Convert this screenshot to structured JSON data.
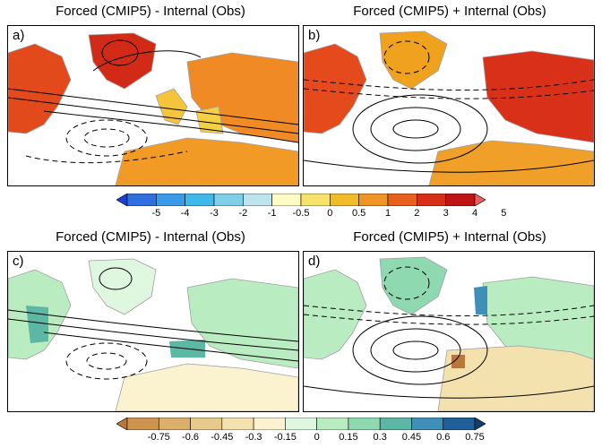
{
  "panels": [
    {
      "id": "a",
      "label": "a)",
      "title": "Forced (CMIP5) - Internal (Obs)"
    },
    {
      "id": "b",
      "label": "b)",
      "title": "Forced (CMIP5) + Internal (Obs)"
    },
    {
      "id": "c",
      "label": "c)",
      "title": "Forced (CMIP5) - Internal (Obs)"
    },
    {
      "id": "d",
      "label": "d)",
      "title": "Forced (CMIP5) + Internal (Obs)"
    }
  ],
  "colorbar_top": {
    "labels": [
      "-5",
      "-4",
      "-3",
      "-2",
      "-1",
      "-0.5",
      "0",
      "0.5",
      "1",
      "2",
      "3",
      "4",
      "5"
    ],
    "colors": [
      "#1f3fd1",
      "#2f6fe0",
      "#3a9ae8",
      "#3fb8ea",
      "#7fcfe8",
      "#bde3ef",
      "#fffbc4",
      "#f8e36a",
      "#f2bb2a",
      "#ef9425",
      "#e8601e",
      "#d83018",
      "#c01414",
      "#e86060"
    ]
  },
  "colorbar_bottom": {
    "labels": [
      "-0.75",
      "-0.6",
      "-0.45",
      "-0.3",
      "-0.15",
      "0",
      "0.15",
      "0.3",
      "0.45",
      "0.6",
      "0.75"
    ],
    "colors": [
      "#b8773a",
      "#cd9450",
      "#dcae6c",
      "#e8c98c",
      "#f3e1ae",
      "#fbf3cf",
      "#dff6df",
      "#b9ecc0",
      "#8ed9b0",
      "#5db7a5",
      "#3f8fb8",
      "#1f5f9a",
      "#143d6b"
    ]
  },
  "colors": {
    "land_gray": "#a0a0a0",
    "contour": "#000000"
  }
}
